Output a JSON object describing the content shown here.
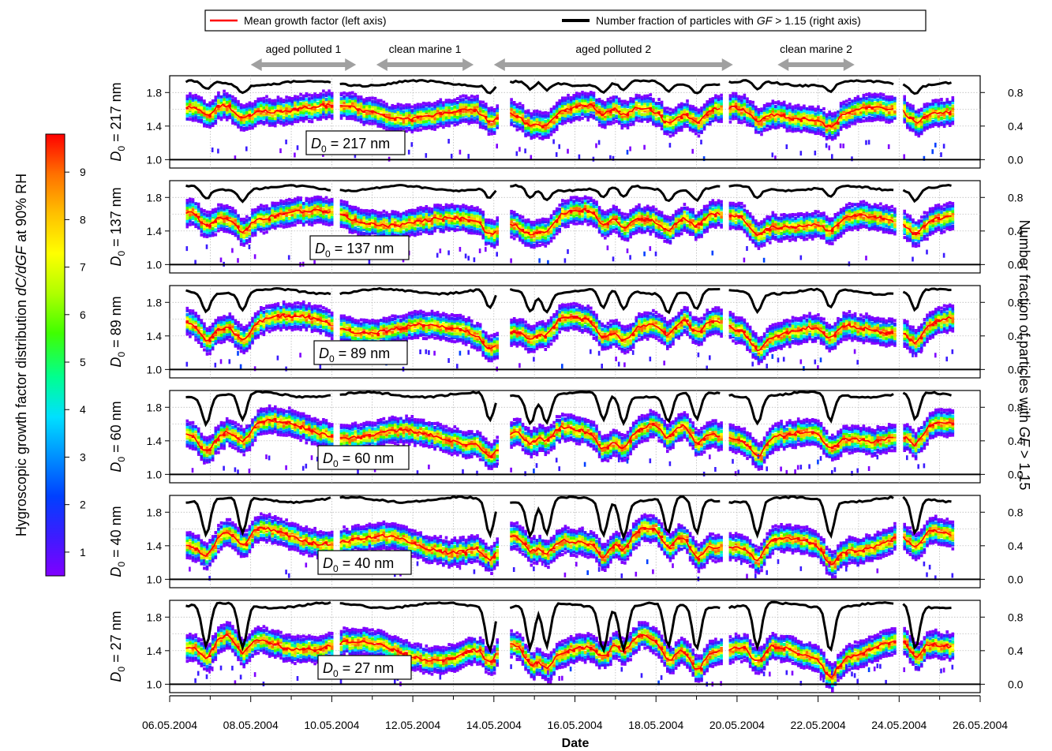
{
  "chart_data": {
    "type": "heatmap",
    "xlabel": "Date",
    "x_ticks": [
      "06.05.2004",
      "08.05.2004",
      "10.05.2004",
      "12.05.2004",
      "14.05.2004",
      "16.05.2004",
      "18.05.2004",
      "20.05.2004",
      "22.05.2004",
      "24.05.2004",
      "26.05.2004"
    ],
    "xlim_days": [
      0,
      20
    ],
    "left_axis": {
      "ticks": [
        "1.0",
        "1.4",
        "1.8"
      ],
      "ylim": [
        0.9,
        2.0
      ]
    },
    "right_axis": {
      "label_prefix": "Number fraction of particles with ",
      "label_italic": "GF",
      "label_suffix": " > 1.15",
      "ticks": [
        "0.0",
        "0.4",
        "0.8"
      ],
      "ylim": [
        -0.1,
        1.0
      ]
    },
    "colorbar": {
      "label_prefix": "Hygroscopic growth factor distribution ",
      "label_italic": "dC/dGF",
      "label_suffix": " at 90% RH",
      "ticks": [
        "1",
        "2",
        "3",
        "4",
        "5",
        "6",
        "7",
        "8",
        "9"
      ],
      "range": [
        0.5,
        9.8
      ],
      "colors": [
        "#8000ff",
        "#3c1cff",
        "#0040ff",
        "#0090ff",
        "#00e0ff",
        "#00ff90",
        "#40ff00",
        "#b0ff00",
        "#ffff00",
        "#ffc000",
        "#ff7000",
        "#ff0000"
      ]
    },
    "legend": [
      {
        "label": "Mean growth factor (left axis)",
        "color": "#ff0000"
      },
      {
        "label_prefix": "Number fraction of particles with ",
        "label_italic": "GF",
        "label_suffix": " > 1.15 (right axis)",
        "color": "#000000"
      }
    ],
    "air_masses": [
      {
        "label": "aged polluted 1",
        "start": 2.0,
        "end": 4.6
      },
      {
        "label": "clean marine 1",
        "start": 5.1,
        "end": 7.5
      },
      {
        "label": "aged polluted 2",
        "start": 8.0,
        "end": 13.9
      },
      {
        "label": "clean marine 2",
        "start": 15.0,
        "end": 16.9
      }
    ],
    "panels": [
      {
        "label_sym": "D",
        "label_sub": "0",
        "label_val": " = 217 nm",
        "inset": "217 nm",
        "gf_mean": 1.58,
        "amp": 0.09,
        "fraction_base": 0.91,
        "dip_depth": 0.06
      },
      {
        "label_sym": "D",
        "label_sub": "0",
        "label_val": " = 137 nm",
        "inset": "137 nm",
        "gf_mean": 1.55,
        "amp": 0.1,
        "fraction_base": 0.91,
        "dip_depth": 0.08
      },
      {
        "label_sym": "D",
        "label_sub": "0",
        "label_val": " = 89 nm",
        "inset": "89 nm",
        "gf_mean": 1.52,
        "amp": 0.12,
        "fraction_base": 0.93,
        "dip_depth": 0.14
      },
      {
        "label_sym": "D",
        "label_sub": "0",
        "label_val": " = 60 nm",
        "inset": "60 nm",
        "gf_mean": 1.5,
        "amp": 0.13,
        "fraction_base": 0.95,
        "dip_depth": 0.2
      },
      {
        "label_sym": "D",
        "label_sub": "0",
        "label_val": " = 40 nm",
        "inset": "40 nm",
        "gf_mean": 1.47,
        "amp": 0.14,
        "fraction_base": 0.95,
        "dip_depth": 0.26
      },
      {
        "label_sym": "D",
        "label_sub": "0",
        "label_val": " = 27 nm",
        "inset": "27 nm",
        "gf_mean": 1.44,
        "amp": 0.14,
        "fraction_base": 0.94,
        "dip_depth": 0.32
      }
    ],
    "data_segments_days": [
      [
        0.4,
        4.0
      ],
      [
        4.2,
        8.1
      ],
      [
        8.4,
        13.6
      ],
      [
        13.8,
        17.9
      ],
      [
        18.1,
        19.3
      ]
    ]
  }
}
